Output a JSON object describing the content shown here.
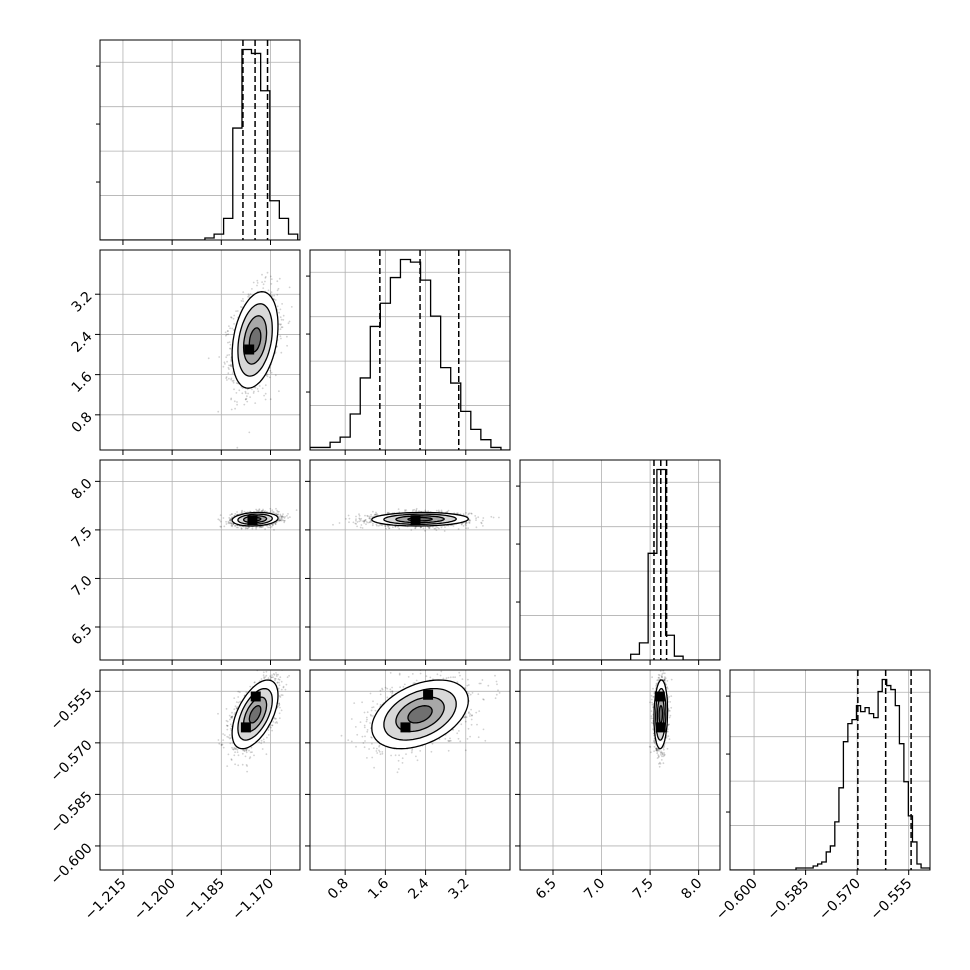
{
  "chart_data": {
    "type": "corner",
    "title": "",
    "parameters": [
      {
        "label": "",
        "range": [
          -1.222,
          -1.161
        ],
        "ticks": [
          -1.215,
          -1.2,
          -1.185,
          -1.17
        ],
        "tick_labels": [
          "−1.215",
          "−1.200",
          "−1.185",
          "−1.170"
        ],
        "quantiles": [
          -1.1784,
          -1.1747,
          -1.1709
        ]
      },
      {
        "label": "",
        "range": [
          0.1,
          4.08
        ],
        "ticks": [
          0.8,
          1.6,
          2.4,
          3.2
        ],
        "tick_labels": [
          "0.8",
          "1.6",
          "2.4",
          "3.2"
        ],
        "quantiles": [
          1.49,
          2.29,
          3.06
        ]
      },
      {
        "label": "",
        "range": [
          6.16,
          8.22
        ],
        "ticks": [
          6.5,
          7.0,
          7.5,
          8.0
        ],
        "tick_labels": [
          "6.5",
          "7.0",
          "7.5",
          "8.0"
        ],
        "quantiles": [
          7.54,
          7.61,
          7.67
        ]
      },
      {
        "label": "",
        "range": [
          -0.607,
          -0.5488
        ],
        "ticks": [
          -0.6,
          -0.585,
          -0.57,
          -0.555
        ],
        "tick_labels": [
          "−0.600",
          "−0.585",
          "−0.570",
          "−0.555"
        ],
        "quantiles": [
          -0.5698,
          -0.5617,
          -0.5543
        ]
      }
    ],
    "histograms": [
      {
        "edges": [
          -1.19,
          -1.1872,
          -1.1843,
          -1.1815,
          -1.1787,
          -1.1758,
          -1.173,
          -1.1702,
          -1.1673,
          -1.1645,
          -1.1617,
          -1.159
        ],
        "counts": [
          1,
          3,
          11,
          57,
          97,
          95,
          76,
          20,
          11,
          3,
          0
        ]
      },
      {
        "edges": [
          0.1,
          0.3,
          0.5,
          0.7,
          0.9,
          1.1,
          1.3,
          1.5,
          1.7,
          1.9,
          2.1,
          2.3,
          2.5,
          2.7,
          2.9,
          3.1,
          3.3,
          3.5,
          3.7,
          3.9,
          4.08
        ],
        "counts": [
          1,
          1,
          3,
          5,
          14,
          28,
          48,
          57,
          67,
          74,
          73,
          66,
          52,
          32,
          26,
          15,
          8,
          4,
          1,
          0
        ]
      },
      {
        "edges": [
          7.3,
          7.39,
          7.48,
          7.57,
          7.66,
          7.75,
          7.84,
          7.93
        ],
        "counts": [
          3,
          9,
          56,
          100,
          13,
          2,
          0
        ]
      },
      {
        "edges": [
          -0.5878,
          -0.5866,
          -0.5853,
          -0.5841,
          -0.5828,
          -0.5815,
          -0.5803,
          -0.579,
          -0.5778,
          -0.5765,
          -0.5753,
          -0.574,
          -0.5727,
          -0.5715,
          -0.5702,
          -0.569,
          -0.5677,
          -0.5665,
          -0.5652,
          -0.5639,
          -0.5627,
          -0.5614,
          -0.5602,
          -0.5589,
          -0.5577,
          -0.5564,
          -0.5551,
          -0.5539,
          -0.5526,
          -0.5514,
          -0.5501,
          -0.5488
        ],
        "counts": [
          1,
          1,
          1,
          1,
          2,
          3,
          4,
          9,
          12,
          24,
          41,
          64,
          73,
          75,
          82,
          79,
          81,
          78,
          76,
          89,
          95,
          92,
          90,
          82,
          63,
          44,
          27,
          14,
          3,
          1,
          1
        ]
      }
    ],
    "pairs": [
      {
        "x": 0,
        "y": 1,
        "mean": [
          -1.1747,
          2.29
        ],
        "sd": [
          0.0035,
          0.48
        ],
        "corr": 0.3,
        "modes": [
          [
            -1.1765,
            2.1
          ]
        ],
        "contours": [
          0.5,
          1.0,
          1.5,
          2.0
        ]
      },
      {
        "x": 0,
        "y": 2,
        "mean": [
          -1.1747,
          7.61
        ],
        "sd": [
          0.0035,
          0.035
        ],
        "corr": 0.15,
        "modes": [
          [
            -1.1755,
            7.6
          ]
        ],
        "contours": [
          0.5,
          1.0,
          1.5,
          2.0
        ]
      },
      {
        "x": 1,
        "y": 2,
        "mean": [
          2.29,
          7.61
        ],
        "sd": [
          0.48,
          0.035
        ],
        "corr": 0.05,
        "modes": [
          [
            2.2,
            7.6
          ]
        ],
        "contours": [
          0.5,
          1.0,
          1.5,
          2.0
        ]
      },
      {
        "x": 0,
        "y": 3,
        "mean": [
          -1.1747,
          -0.5617
        ],
        "sd": [
          0.0035,
          0.005
        ],
        "corr": 0.55,
        "modes": [
          [
            -1.1775,
            -0.5655
          ],
          [
            -1.1745,
            -0.5565
          ]
        ],
        "contours": [
          0.5,
          1.0,
          1.5,
          2.0
        ]
      },
      {
        "x": 1,
        "y": 3,
        "mean": [
          2.29,
          -0.5617
        ],
        "sd": [
          0.48,
          0.005
        ],
        "corr": 0.4,
        "modes": [
          [
            2.0,
            -0.5655
          ],
          [
            2.45,
            -0.556
          ]
        ],
        "contours": [
          0.5,
          1.0,
          1.5,
          2.0
        ]
      },
      {
        "x": 2,
        "y": 3,
        "mean": [
          7.61,
          -0.5617
        ],
        "sd": [
          0.035,
          0.005
        ],
        "corr": 0.1,
        "modes": [
          [
            7.6,
            -0.5565
          ],
          [
            7.61,
            -0.5655
          ]
        ],
        "contours": [
          0.5,
          1.0,
          1.5,
          2.0
        ]
      }
    ],
    "grid": true,
    "line_color": "#000000",
    "grid_color": "#b0b0b0"
  }
}
